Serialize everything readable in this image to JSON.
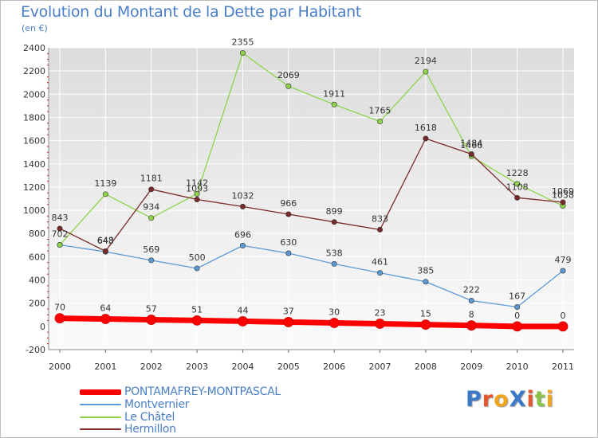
{
  "header": {
    "title": "Evolution du Montant de la Dette par Habitant",
    "subtitle": "(en €)"
  },
  "logo": {
    "text": "ProXiti",
    "letter_colors": [
      "#3b7ac9",
      "#e8542b",
      "#f2a51c",
      "#3b7ac9",
      "#e8542b",
      "#8bc34a",
      "#f2a51c"
    ]
  },
  "chart_data": {
    "type": "line",
    "title": "Evolution du Montant de la Dette par Habitant",
    "subtitle": "(en €)",
    "xlabel": "",
    "ylabel": "",
    "x": [
      "2000",
      "2001",
      "2002",
      "2003",
      "2004",
      "2005",
      "2006",
      "2007",
      "2008",
      "2009",
      "2010",
      "2011"
    ],
    "ylim": [
      -200,
      2400
    ],
    "yticks": [
      -200,
      0,
      200,
      400,
      600,
      800,
      1000,
      1200,
      1400,
      1600,
      1800,
      2000,
      2200,
      2400
    ],
    "grid": true,
    "legend_position": "bottom-left",
    "series": [
      {
        "name": "PONTAMAFREY-MONTPASCAL",
        "color": "#ff0000",
        "emphasis": true,
        "values": [
          70,
          64,
          57,
          51,
          44,
          37,
          30,
          23,
          15,
          8,
          0,
          0
        ],
        "labels": [
          "70",
          "64",
          "57",
          "51",
          "44",
          "37",
          "30",
          "23",
          "15",
          "8",
          "0",
          "0"
        ]
      },
      {
        "name": "Montvernier",
        "color": "#5b9bd5",
        "emphasis": false,
        "values": [
          702,
          643,
          569,
          500,
          696,
          630,
          538,
          461,
          385,
          222,
          167,
          479
        ],
        "labels": [
          "702",
          "643",
          "569",
          "500",
          "696",
          "630",
          "538",
          "461",
          "385",
          "222",
          "167",
          "479"
        ]
      },
      {
        "name": "Le Châtel",
        "color": "#8ed44a",
        "emphasis": false,
        "values": [
          702,
          1139,
          934,
          1142,
          2355,
          2069,
          1911,
          1765,
          2194,
          1466,
          1228,
          1038
        ],
        "labels": [
          "",
          "1139",
          "934",
          "1142",
          "2355",
          "2069",
          "1911",
          "1765",
          "2194",
          "1466",
          "1228",
          "1038"
        ]
      },
      {
        "name": "Hermillon",
        "color": "#7a2a2a",
        "emphasis": false,
        "values": [
          843,
          648,
          1181,
          1093,
          1032,
          966,
          899,
          833,
          1618,
          1484,
          1108,
          1069
        ],
        "labels": [
          "843",
          "648",
          "1181",
          "1093",
          "1032",
          "966",
          "899",
          "833",
          "1618",
          "1484",
          "1108",
          "1069"
        ]
      }
    ]
  }
}
